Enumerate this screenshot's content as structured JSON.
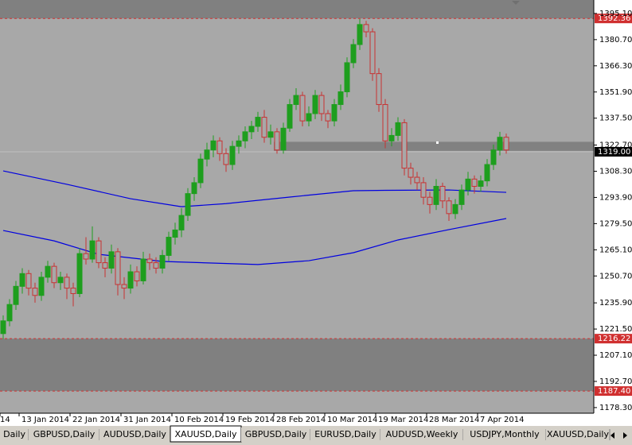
{
  "chart_data": {
    "type": "candlestick",
    "categories": [
      "14",
      null,
      null,
      "13 Jan 2014",
      null,
      null,
      null,
      null,
      null,
      null,
      null,
      "22 Jan 2014",
      null,
      null,
      null,
      null,
      null,
      null,
      null,
      "31 Jan 2014",
      null,
      null,
      null,
      null,
      null,
      null,
      null,
      "10 Feb 2014",
      null,
      null,
      null,
      null,
      null,
      null,
      null,
      "19 Feb 2014",
      null,
      null,
      null,
      null,
      null,
      null,
      null,
      "28 Feb 2014",
      null,
      null,
      null,
      null,
      null,
      null,
      null,
      "10 Mar 2014",
      null,
      null,
      null,
      null,
      null,
      null,
      null,
      "19 Mar 2014",
      null,
      null,
      null,
      null,
      null,
      null,
      null,
      "28 Mar 2014",
      null,
      null,
      null,
      null,
      null,
      null,
      null,
      "7 Apr 2014",
      null,
      null,
      null,
      null
    ],
    "ohlc": [
      [
        1219,
        1229,
        1216,
        1226
      ],
      [
        1226,
        1238,
        1223,
        1235
      ],
      [
        1235,
        1248,
        1232,
        1245
      ],
      [
        1245,
        1255,
        1241,
        1252
      ],
      [
        1252,
        1254,
        1240,
        1244
      ],
      [
        1244,
        1247,
        1236,
        1240
      ],
      [
        1240,
        1253,
        1237,
        1250
      ],
      [
        1250,
        1259,
        1247,
        1256
      ],
      [
        1256,
        1258,
        1244,
        1247
      ],
      [
        1247,
        1253,
        1243,
        1250
      ],
      [
        1250,
        1252,
        1238,
        1244
      ],
      [
        1244,
        1247,
        1234,
        1241
      ],
      [
        1241,
        1266,
        1239,
        1263
      ],
      [
        1263,
        1272,
        1257,
        1260
      ],
      [
        1260,
        1278,
        1258,
        1270
      ],
      [
        1270,
        1272,
        1255,
        1258
      ],
      [
        1258,
        1261,
        1250,
        1255
      ],
      [
        1255,
        1268,
        1252,
        1264
      ],
      [
        1264,
        1266,
        1240,
        1246
      ],
      [
        1246,
        1250,
        1238,
        1244
      ],
      [
        1244,
        1257,
        1241,
        1253
      ],
      [
        1253,
        1256,
        1245,
        1248
      ],
      [
        1248,
        1264,
        1246,
        1260
      ],
      [
        1260,
        1263,
        1254,
        1258
      ],
      [
        1258,
        1261,
        1252,
        1255
      ],
      [
        1255,
        1265,
        1252,
        1262
      ],
      [
        1262,
        1275,
        1259,
        1272
      ],
      [
        1272,
        1280,
        1268,
        1276
      ],
      [
        1276,
        1288,
        1272,
        1284
      ],
      [
        1284,
        1299,
        1281,
        1296
      ],
      [
        1296,
        1305,
        1292,
        1302
      ],
      [
        1302,
        1318,
        1299,
        1315
      ],
      [
        1315,
        1324,
        1311,
        1320
      ],
      [
        1320,
        1328,
        1316,
        1325
      ],
      [
        1325,
        1327,
        1314,
        1318
      ],
      [
        1318,
        1321,
        1308,
        1312
      ],
      [
        1312,
        1325,
        1309,
        1322
      ],
      [
        1322,
        1328,
        1318,
        1325
      ],
      [
        1325,
        1333,
        1321,
        1330
      ],
      [
        1330,
        1336,
        1326,
        1333
      ],
      [
        1333,
        1341,
        1330,
        1338
      ],
      [
        1338,
        1342,
        1324,
        1327
      ],
      [
        1327,
        1334,
        1323,
        1330
      ],
      [
        1330,
        1332,
        1318,
        1320
      ],
      [
        1320,
        1335,
        1318,
        1332
      ],
      [
        1332,
        1348,
        1330,
        1345
      ],
      [
        1345,
        1354,
        1342,
        1350
      ],
      [
        1350,
        1352,
        1333,
        1336
      ],
      [
        1336,
        1344,
        1333,
        1340
      ],
      [
        1340,
        1353,
        1337,
        1350
      ],
      [
        1350,
        1352,
        1336,
        1340
      ],
      [
        1340,
        1342,
        1332,
        1336
      ],
      [
        1336,
        1348,
        1333,
        1345
      ],
      [
        1345,
        1356,
        1342,
        1352
      ],
      [
        1352,
        1371,
        1349,
        1368
      ],
      [
        1368,
        1381,
        1365,
        1378
      ],
      [
        1378,
        1392,
        1375,
        1389
      ],
      [
        1389,
        1391,
        1382,
        1385
      ],
      [
        1385,
        1387,
        1358,
        1362
      ],
      [
        1362,
        1365,
        1341,
        1345
      ],
      [
        1345,
        1348,
        1321,
        1325
      ],
      [
        1325,
        1332,
        1322,
        1328
      ],
      [
        1328,
        1338,
        1325,
        1335
      ],
      [
        1335,
        1337,
        1306,
        1310
      ],
      [
        1310,
        1313,
        1301,
        1305
      ],
      [
        1305,
        1308,
        1298,
        1302
      ],
      [
        1302,
        1305,
        1290,
        1294
      ],
      [
        1294,
        1297,
        1285,
        1290
      ],
      [
        1290,
        1304,
        1287,
        1300
      ],
      [
        1300,
        1302,
        1288,
        1292
      ],
      [
        1292,
        1294,
        1281,
        1285
      ],
      [
        1285,
        1293,
        1282,
        1290
      ],
      [
        1290,
        1301,
        1287,
        1298
      ],
      [
        1298,
        1308,
        1295,
        1304
      ],
      [
        1304,
        1306,
        1296,
        1300
      ],
      [
        1300,
        1306,
        1297,
        1303
      ],
      [
        1303,
        1315,
        1300,
        1312
      ],
      [
        1312,
        1323,
        1309,
        1320
      ],
      [
        1320,
        1330,
        1317,
        1327
      ],
      [
        1327,
        1329,
        1318,
        1320
      ]
    ],
    "up_color": "#1e9e1e",
    "down_color": "#c83232",
    "series": [
      {
        "color": "#0000e0",
        "x": [
          0,
          10,
          20,
          28,
          35,
          45,
          55,
          60,
          70,
          79
        ],
        "values": [
          1308.5,
          1301.1,
          1293.2,
          1288.8,
          1290.5,
          1294.1,
          1297.6,
          1297.8,
          1298,
          1296.7
        ]
      },
      {
        "color": "#0000e0",
        "x": [
          0,
          8,
          15,
          25,
          40,
          48,
          55,
          62,
          70,
          79
        ],
        "values": [
          1275.7,
          1270,
          1262.6,
          1258.7,
          1257,
          1259.1,
          1263.5,
          1270.5,
          1276.2,
          1282.3
        ]
      }
    ],
    "ylim": [
      1175.2,
      1402.5
    ],
    "yticks": [
      {
        "value": 1395.1,
        "label": "1395.10"
      },
      {
        "value": 1380.7,
        "label": "1380.70"
      },
      {
        "value": 1366.3,
        "label": "1366.30"
      },
      {
        "value": 1351.9,
        "label": "1351.90"
      },
      {
        "value": 1337.5,
        "label": "1337.50"
      },
      {
        "value": 1322.7,
        "label": "1322.70"
      },
      {
        "value": 1308.3,
        "label": "1308.30"
      },
      {
        "value": 1293.9,
        "label": "1293.90"
      },
      {
        "value": 1279.5,
        "label": "1279.50"
      },
      {
        "value": 1265.1,
        "label": "1265.10"
      },
      {
        "value": 1250.7,
        "label": "1250.70"
      },
      {
        "value": 1235.9,
        "label": "1235.90"
      },
      {
        "value": 1221.5,
        "label": "1221.50"
      },
      {
        "value": 1207.1,
        "label": "1207.10"
      },
      {
        "value": 1192.7,
        "label": "1192.70"
      },
      {
        "value": 1178.3,
        "label": "1178.30"
      }
    ],
    "levels": [
      1392.36,
      1216.22,
      {
        "value": 1187.4,
        "label": "1187.40"
      }
    ],
    "level_color": "#d03030",
    "current_price": {
      "value": 1319,
      "label": "1319.00"
    },
    "rectangles": [
      {
        "start": 43,
        "low": 1319.5,
        "high": 1324.5
      },
      {
        "start": 0,
        "low": 1392.36,
        "high": 1402.5
      },
      {
        "start": 0,
        "low": 1187.4,
        "high": 1216.22
      }
    ]
  },
  "tabs": {
    "items": [
      "Daily",
      "GBPUSD,Daily",
      "AUDUSD,Daily",
      "XAUUSD,Daily",
      "GBPUSD,Daily",
      "EURUSD,Daily",
      "AUDUSD,Weekly",
      "USDJPY,Monthly",
      "XAUUSD,Daily"
    ],
    "active": 3
  }
}
